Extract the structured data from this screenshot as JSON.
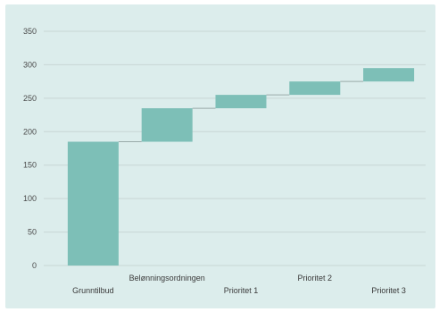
{
  "chart_data": {
    "type": "bar",
    "subtype": "waterfall",
    "title": "",
    "xlabel": "",
    "ylabel": "",
    "ylim": [
      0,
      350
    ],
    "yticks": [
      0,
      50,
      100,
      150,
      200,
      250,
      300,
      350
    ],
    "grid": true,
    "legend": "none",
    "categories": [
      "Grunntilbud",
      "Belønningsordningen",
      "Prioritet 1",
      "Prioritet 2",
      "Prioritet 3"
    ],
    "bars": [
      {
        "category": "Grunntilbud",
        "start": 0,
        "end": 185
      },
      {
        "category": "Belønningsordningen",
        "start": 185,
        "end": 235
      },
      {
        "category": "Prioritet 1",
        "start": 235,
        "end": 255
      },
      {
        "category": "Prioritet 2",
        "start": 255,
        "end": 275
      },
      {
        "category": "Prioritet 3",
        "start": 275,
        "end": 295
      }
    ],
    "colors": {
      "bar": "#7dbfb7",
      "grid": "#c8d6d5",
      "connector": "#9aaaa9",
      "background": "#dcedec"
    }
  }
}
